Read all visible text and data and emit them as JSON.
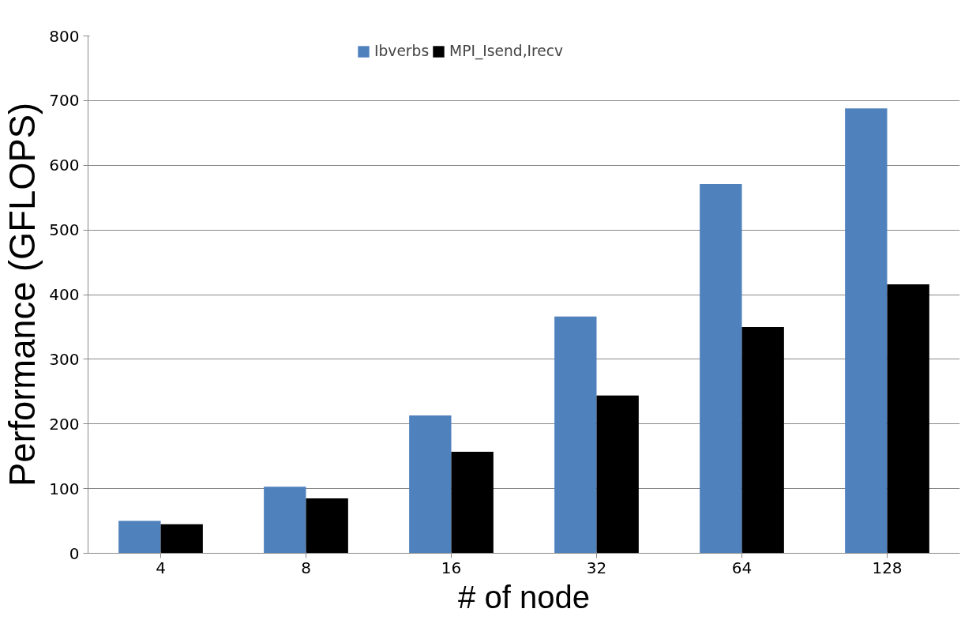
{
  "chart_data": {
    "type": "bar",
    "xlabel": "# of node",
    "ylabel": "Performance (GFLOPS)",
    "categories": [
      "4",
      "8",
      "16",
      "32",
      "64",
      "128"
    ],
    "series": [
      {
        "name": "Ibverbs",
        "color": "#4f81bd",
        "values": [
          50,
          103,
          213,
          366,
          571,
          688
        ]
      },
      {
        "name": "MPI_Isend,Irecv",
        "color": "#000000",
        "values": [
          45,
          85,
          157,
          244,
          350,
          416
        ]
      }
    ],
    "ylim": [
      0,
      800
    ],
    "yticks": [
      0,
      100,
      200,
      300,
      400,
      500,
      600,
      700,
      800
    ],
    "grid": "y",
    "legend": "top"
  }
}
